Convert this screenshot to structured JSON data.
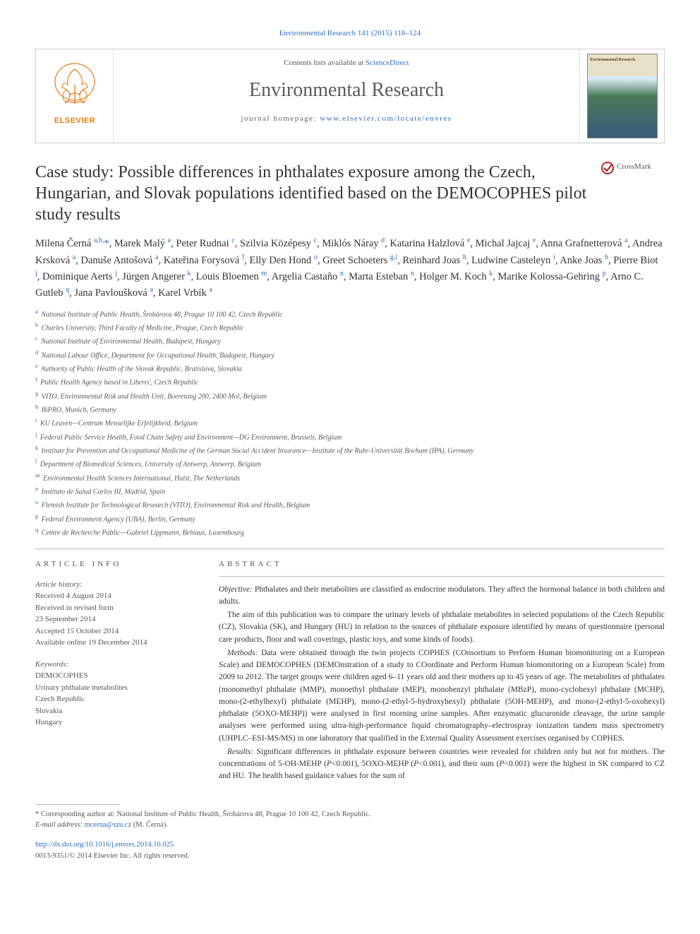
{
  "top_citation": "Environmental Research 141 (2015) 118–124",
  "masthead": {
    "contents_prefix": "Contents lists available at ",
    "contents_link": "ScienceDirect",
    "journal_name": "Environmental Research",
    "homepage_prefix": "journal homepage: ",
    "homepage_url": "www.elsevier.com/locate/envres",
    "publisher_logo_label": "ELSEVIER",
    "cover_label": "Environmental Research"
  },
  "crossmark_label": "CrossMark",
  "title": "Case study: Possible differences in phthalates exposure among the Czech, Hungarian, and Slovak populations identified based on the DEMOCOPHES pilot study results",
  "authors_html": "Milena Černá <sup>a,b,</sup><span class='corr'>*</span>, Marek Malý <sup>a</sup>, Peter Rudnai <sup>c</sup>, Szilvia Középesy <sup>c</sup>, Miklós Náray <sup>d</sup>, Katarina Halzlová <sup>e</sup>, Michal Jajcaj <sup>e</sup>, Anna Grafnetterová <sup>a</sup>, Andrea Krsková <sup>a</sup>, Danuše Antošová <sup>a</sup>, Kateřina Forysová <sup>f</sup>, Elly Den Hond <sup>o</sup>, Greet Schoeters <sup>g,l</sup>, Reinhard Joas <sup>h</sup>, Ludwine Casteleyn <sup>i</sup>, Anke Joas <sup>h</sup>, Pierre Biot <sup>j</sup>, Dominique Aerts <sup>j</sup>, Jürgen Angerer <sup>k</sup>, Louis Bloemen <sup>m</sup>, Argelia Castaño <sup>n</sup>, Marta Esteban <sup>n</sup>, Holger M. Koch <sup>k</sup>, Marike Kolossa-Gehring <sup>p</sup>, Arno C. Gutleb <sup>q</sup>, Jana Pavloušková <sup>a</sup>, Karel Vrbík <sup>a</sup>",
  "affiliations": [
    {
      "k": "a",
      "t": "National Institute of Public Health, Šrobárova 48, Prague 10 100 42, Czech Republic"
    },
    {
      "k": "b",
      "t": "Charles University, Third Faculty of Medicine, Prague, Czech Republic"
    },
    {
      "k": "c",
      "t": "National Institute of Environmental Health, Budapest, Hungary"
    },
    {
      "k": "d",
      "t": "National Labour Office, Department for Occupational Health, Budapest, Hungary"
    },
    {
      "k": "e",
      "t": "Authority of Public Health of the Slovak Republic, Bratislava, Slovakia"
    },
    {
      "k": "f",
      "t": "Public Health Agency based in Liberec, Czech Republic"
    },
    {
      "k": "g",
      "t": "VITO, Environmental Risk and Health Unit, Boeretang 200, 2400 Mol, Belgium"
    },
    {
      "k": "h",
      "t": "BiPRO, Munich, Germany"
    },
    {
      "k": "i",
      "t": "KU Leuven—Centrum Menselijke Erfelijkheid, Belgium"
    },
    {
      "k": "j",
      "t": "Federal Public Service Health, Food Chain Safety and Environment—DG Environment, Brussels, Belgium"
    },
    {
      "k": "k",
      "t": "Institute for Prevention and Occupational Medicine of the German Social Accident Insurance—Institute of the Ruhr-Universität Bochum (IPA), Germany"
    },
    {
      "k": "l",
      "t": "Department of Biomedical Sciences, University of Antwerp, Antwerp, Belgium"
    },
    {
      "k": "m",
      "t": "Environmental Health Sciences International, Hulst, The Netherlands"
    },
    {
      "k": "n",
      "t": "Instituto de Salud Carlos III, Madrid, Spain"
    },
    {
      "k": "o",
      "t": "Flemish Institute for Technological Research (VITO), Environmental Risk and Health, Belgium"
    },
    {
      "k": "p",
      "t": "Federal Environment Agency (UBA), Berlin, Germany"
    },
    {
      "k": "q",
      "t": "Centre de Recherche Public—Gabriel Lippmann, Belvaux, Luxembourg"
    }
  ],
  "article_info": {
    "head": "ARTICLE INFO",
    "history_label": "Article history:",
    "history": [
      "Received 4 August 2014",
      "Received in revised form",
      "23 September 2014",
      "Accepted 15 October 2014",
      "Available online 19 December 2014"
    ],
    "keywords_label": "Keywords:",
    "keywords": [
      "DEMOCOPHES",
      "Urinary phthalate metabolites",
      "Czech Republic",
      "Slovakia",
      "Hungary"
    ]
  },
  "abstract": {
    "head": "ABSTRACT",
    "paras": [
      {
        "run_in": "Objective:",
        "text": " Phthalates and their metabolites are classified as endocrine modulators. They affect the hormonal balance in both children and adults."
      },
      {
        "run_in": "",
        "text": "The aim of this publication was to compare the urinary levels of phthalate metabolites in selected populations of the Czech Republic (CZ), Slovakia (SK), and Hungary (HU) in relation to the sources of phthalate exposure identified by means of questionnaire (personal care products, floor and wall coverings, plastic toys, and some kinds of foods)."
      },
      {
        "run_in": "Methods:",
        "text": " Data were obtained through the twin projects COPHES (COnsortium to Perform Human biomonitoring on a European Scale) and DEMOCOPHES (DEMOnstration of a study to COordinate and Perform Human biomonitoring on a European Scale) from 2009 to 2012. The target groups were children aged 6–11 years old and their mothers up to 45 years of age. The metabolites of phthalates (monomethyl phthalate (MMP), monoethyl phthalate (MEP), monobenzyl phthalate (MBzP), mono-cyclohexyl phthalate (MCHP), mono-(2-ethylhexyl) phthalate (MEHP), mono-(2-ethyl-5-hydroxyhexyl) phthalate (5OH-MEHP), and mono-(2-ethyl-5-oxohexyl) phthalate (5OXO-MEHP)) were analysed in first morning urine samples. After enzymatic glucuronide cleavage, the urine sample analyses were performed using ultra-high-performance liquid chromatography–electrospray ionization tandem mass spectrometry (UHPLC–ESI-MS/MS) in one laboratory that qualified in the External Quality Assessment exercises organised by COPHES."
      },
      {
        "run_in": "Results:",
        "text": " Significant differences in phthalate exposure between countries were revealed for children only but not for mothers. The concentrations of 5-OH-MEHP (P<0.001), 5OXO-MEHP (P<0.001), and their sum (P<0.001) were the highest in SK compared to CZ and HU. The health based guidance values for the sum of"
      }
    ]
  },
  "footnotes": {
    "corr_label": "* Corresponding author at: National Institute of Public Health, Šrobárova 48, Prague 10 100 42, Czech Republic.",
    "email_label": "E-mail address: ",
    "email": "mcerna@szu.cz",
    "email_person": " (M. Černá)."
  },
  "doi": {
    "url": "http://dx.doi.org/10.1016/j.envres.2014.10.025",
    "issn_line": "0013-9351/© 2014 Elsevier Inc. All rights reserved."
  },
  "colors": {
    "link": "#2a6ebb",
    "text": "#333333",
    "muted": "#555555",
    "rule": "#bbbbbb"
  }
}
